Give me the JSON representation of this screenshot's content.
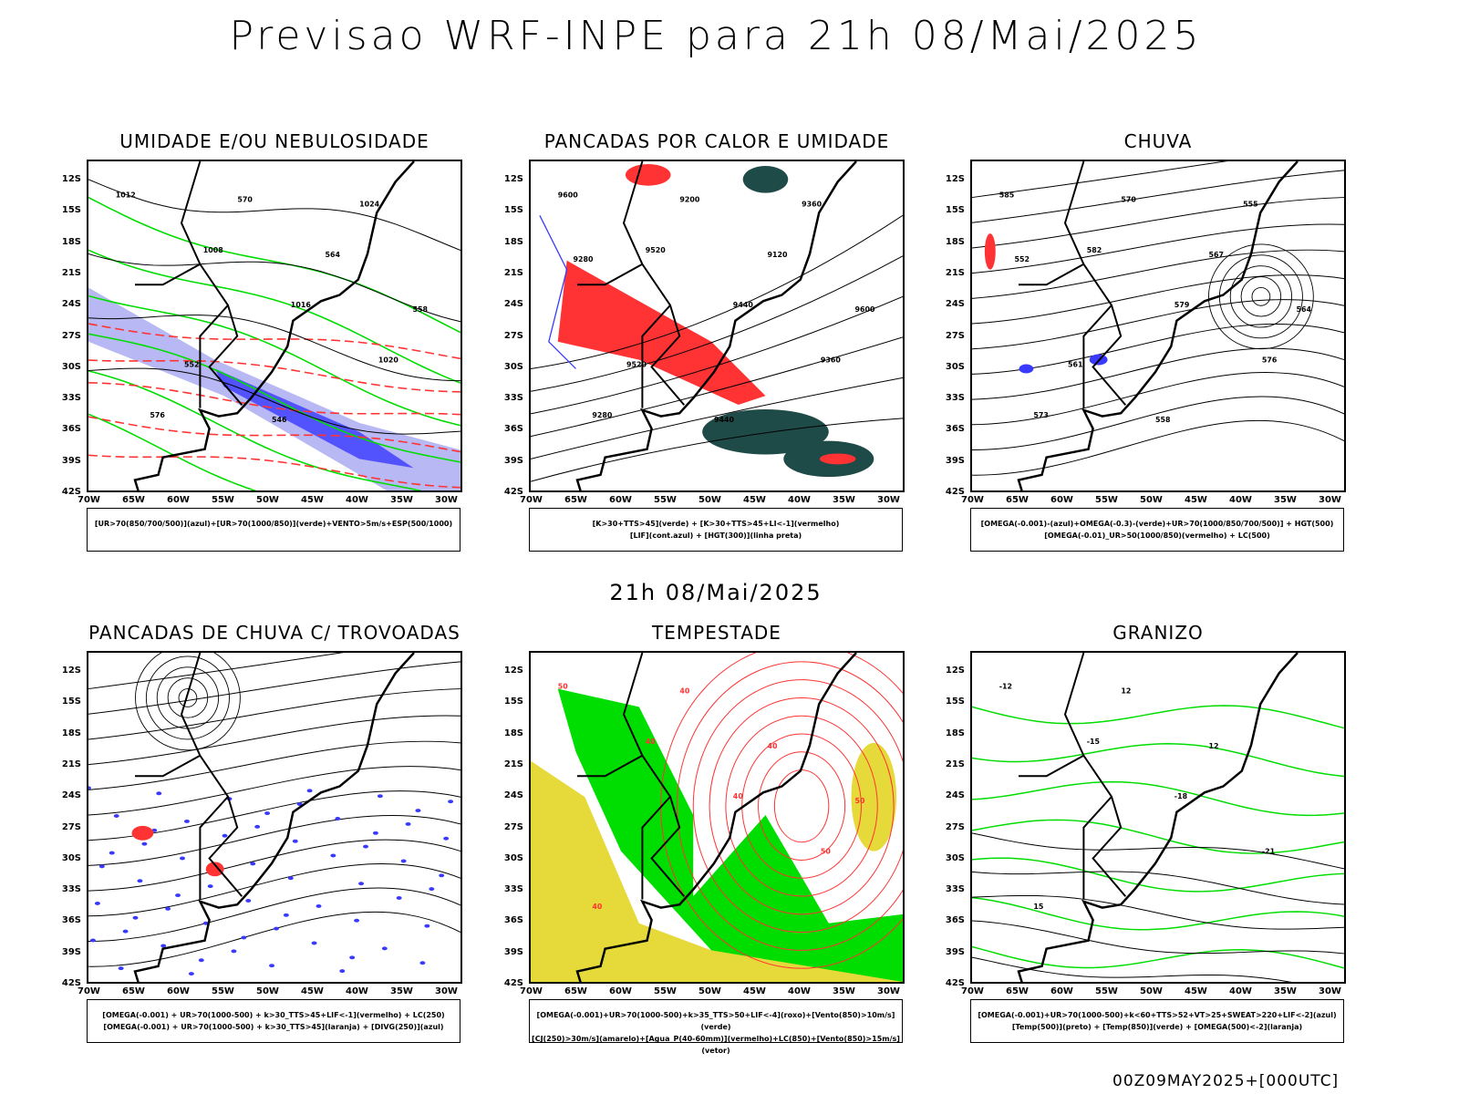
{
  "title": "Previsao WRF-INPE  para 21h 08/Mai/2025",
  "subtitle": "21h 08/Mai/2025",
  "footer": "00Z09MAY2025+[000UTC]",
  "axes": {
    "lat_labels": [
      "12S",
      "15S",
      "18S",
      "21S",
      "24S",
      "27S",
      "30S",
      "33S",
      "36S",
      "39S",
      "42S"
    ],
    "lon_labels": [
      "70W",
      "65W",
      "60W",
      "55W",
      "50W",
      "45W",
      "40W",
      "35W",
      "30W"
    ]
  },
  "panels": [
    {
      "title": "UMIDADE E/OU NEBULOSIDADE",
      "legend": [
        "[UR>70(850/700/500)](azul)+[UR>70(1000/850)](verde)+VENTO>5m/s+ESP(500/1000)"
      ],
      "kind": "umidade",
      "contour_labels": [
        "1012",
        "1008",
        "1016",
        "1020",
        "576",
        "570",
        "564",
        "558",
        "552",
        "546",
        "1024"
      ]
    },
    {
      "title": "PANCADAS POR CALOR E UMIDADE",
      "legend": [
        "[K>30+TTS>45](verde) + [K>30+TTS>45+LI<-1](vermelho)",
        "[LIF](cont.azul) + [HGT(300)](linha preta)"
      ],
      "kind": "pancadas",
      "contour_labels": [
        "9600",
        "9520",
        "9440",
        "9360",
        "9280",
        "9200",
        "9120",
        "9600",
        "9520",
        "9440",
        "9360",
        "9280"
      ]
    },
    {
      "title": "CHUVA",
      "legend": [
        "[OMEGA(-0.001)-(azul)+OMEGA(-0.3)-(verde)+UR>70(1000/850/700/500)] + HGT(500)",
        "[OMEGA(-0.01)_UR>50(1000/850)(vermelho) + LC(500)"
      ],
      "kind": "chuva",
      "contour_labels": [
        "585",
        "582",
        "579",
        "576",
        "573",
        "570",
        "567",
        "564",
        "561",
        "558",
        "555",
        "552"
      ]
    },
    {
      "title": "PANCADAS DE CHUVA C/ TROVOADAS",
      "legend": [
        "[OMEGA(-0.001) + UR>70(1000-500) + k>30_TTS>45+LIF<-1](vermelho) + LC(250)",
        "[OMEGA(-0.001) + UR>70(1000-500) + k>30_TTS>45](laranja) + [DIVG(250)](azul)"
      ],
      "kind": "trovoadas",
      "contour_labels": []
    },
    {
      "title": "TEMPESTADE",
      "legend": [
        "[OMEGA(-0.001)+UR>70(1000-500)+k>35_TTS>50+LIF<-4](roxo)+[Vento(850)>10m/s](verde)",
        "[CJ(250)>30m/s](amarelo)+[Agua_P(40-60mm)](vermelho)+LC(850)+[Vento(850)>15m/s](vetor)"
      ],
      "kind": "tempestade",
      "contour_labels": [
        "50",
        "40",
        "40",
        "50",
        "40",
        "40",
        "40",
        "50"
      ]
    },
    {
      "title": "GRANIZO",
      "legend": [
        "[OMEGA(-0.001)+UR>70(1000-500)+k<60+TTS>52+VT>25+SWEAT>220+LIF<-2](azul)",
        "[Temp(500)](preto) + [Temp(850)](verde) + [OMEGA(500)<-2](laranja)"
      ],
      "kind": "granizo",
      "contour_labels": [
        "-12",
        "-15",
        "-18",
        "-21",
        "15",
        "12",
        "12"
      ]
    }
  ],
  "colors": {
    "blue": "#3a3aff",
    "lightblue": "#b8b8f4",
    "green": "#00dd00",
    "red": "#ff3333",
    "teal": "#1e4a48",
    "yellow": "#e6d93a",
    "black": "#000000"
  }
}
